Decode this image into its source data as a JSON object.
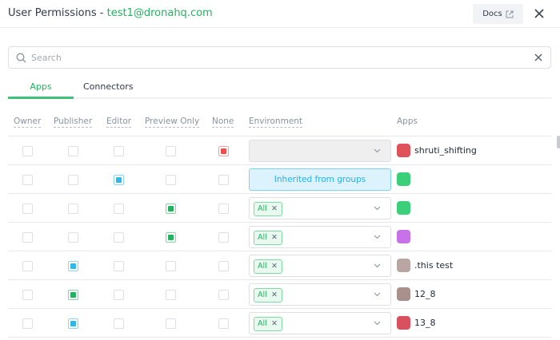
{
  "header": {
    "title": "User Permissions - ",
    "email": "test1@dronahq.com",
    "docs_label": "Docs"
  },
  "search": {
    "placeholder": "Search",
    "value": ""
  },
  "tabs": [
    {
      "label": "Apps",
      "active": true
    },
    {
      "label": "Connectors",
      "active": false
    }
  ],
  "columns": [
    "Owner",
    "Publisher",
    "Editor",
    "Preview Only",
    "None",
    "Environment",
    "Apps"
  ],
  "colors": {
    "green": "#22b35e",
    "blue": "#2fb9ea",
    "red": "#f04d4d"
  },
  "rows": [
    {
      "checked": "None",
      "check_color": "red",
      "env": "disabled",
      "app": "shruti_shifting",
      "icon_color": "#e0525a"
    },
    {
      "checked": "Editor",
      "check_color": "blue",
      "env": "Inherited from groups",
      "app": "",
      "icon_color": "#3ccf7a"
    },
    {
      "checked": "Preview Only",
      "check_color": "green",
      "env": "All",
      "app": "",
      "icon_color": "#3ccf7a"
    },
    {
      "checked": "Preview Only",
      "check_color": "green",
      "env": "All",
      "app": "",
      "icon_color": "#c772e8"
    },
    {
      "checked": "Publisher",
      "check_color": "blue",
      "env": "All",
      "app": ".this test",
      "icon_color": "#b9a6a3"
    },
    {
      "checked": "Publisher",
      "check_color": "green",
      "env": "All",
      "app": "12_8",
      "icon_color": "#a9908c"
    },
    {
      "checked": "Publisher",
      "check_color": "blue",
      "env": "All",
      "app": "13_8",
      "icon_color": "#d9505e"
    }
  ]
}
